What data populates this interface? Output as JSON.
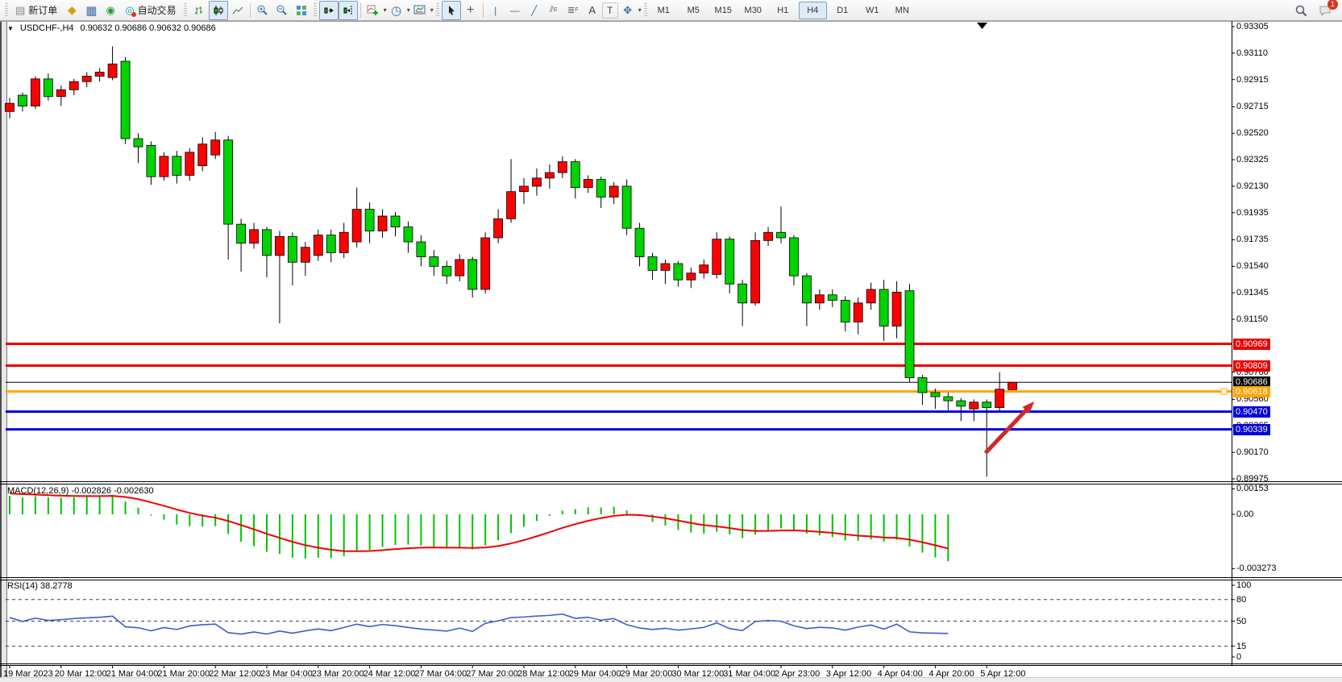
{
  "toolbar": {
    "new_order": "新订单",
    "autotrading": "自动交易",
    "timeframes": [
      "M1",
      "M5",
      "M15",
      "M30",
      "H1",
      "H4",
      "D1",
      "W1",
      "MN"
    ],
    "active_timeframe": "H4",
    "chat_badge": "1"
  },
  "chart": {
    "collapse_arrow": "▼",
    "title": "USDCHF-,H4",
    "ohlc_text": "0.90632 0.90686 0.90632 0.90686"
  },
  "macd_panel": {
    "label": "MACD(12,26,9) -0.002826 -0.002630",
    "axis_ticks": [
      "0.00153",
      "0.00",
      "-0.003273"
    ]
  },
  "rsi_panel": {
    "label": "RSI(14) 38.2778",
    "axis_ticks": [
      "100",
      "80",
      "50",
      "15",
      "0"
    ]
  },
  "chart_data": {
    "type": "candlestick",
    "symbol": "USDCHF-",
    "timeframe": "H4",
    "current": {
      "open": 0.90632,
      "high": 0.90686,
      "low": 0.90632,
      "close": 0.90686
    },
    "bull_color": "#FF0000",
    "bear_color": "#00D300",
    "price_axis_ticks": [
      0.93305,
      0.9311,
      0.92915,
      0.92715,
      0.9252,
      0.92325,
      0.9213,
      0.91935,
      0.91735,
      0.9154,
      0.91345,
      0.9115,
      0.9076,
      0.9056,
      0.90365,
      0.9017,
      0.89975
    ],
    "time_labels": [
      "19 Mar 2023",
      "20 Mar 12:00",
      "21 Mar 04:00",
      "21 Mar 20:00",
      "22 Mar 12:00",
      "23 Mar 04:00",
      "23 Mar 20:00",
      "24 Mar 12:00",
      "27 Mar 04:00",
      "27 Mar 20:00",
      "28 Mar 12:00",
      "29 Mar 04:00",
      "29 Mar 20:00",
      "30 Mar 12:00",
      "31 Mar 04:00",
      "2 Apr 23:00",
      "3 Apr 12:00",
      "4 Apr 04:00",
      "4 Apr 20:00",
      "5 Apr 12:00"
    ],
    "candles": [
      [
        0.9268,
        0.9278,
        0.9263,
        0.9274
      ],
      [
        0.928,
        0.9282,
        0.9268,
        0.9272
      ],
      [
        0.9272,
        0.9294,
        0.927,
        0.9292
      ],
      [
        0.9292,
        0.9296,
        0.9276,
        0.9279
      ],
      [
        0.9279,
        0.9287,
        0.9272,
        0.9284
      ],
      [
        0.9284,
        0.9292,
        0.928,
        0.929
      ],
      [
        0.929,
        0.9297,
        0.9286,
        0.9294
      ],
      [
        0.9294,
        0.93,
        0.929,
        0.9297
      ],
      [
        0.9293,
        0.9316,
        0.9291,
        0.9303
      ],
      [
        0.9305,
        0.9308,
        0.9244,
        0.9248
      ],
      [
        0.9248,
        0.9252,
        0.923,
        0.9242
      ],
      [
        0.9243,
        0.9246,
        0.9214,
        0.922
      ],
      [
        0.922,
        0.9238,
        0.9217,
        0.9235
      ],
      [
        0.9235,
        0.9239,
        0.9215,
        0.9221
      ],
      [
        0.9221,
        0.9241,
        0.9217,
        0.9238
      ],
      [
        0.9228,
        0.9249,
        0.9224,
        0.9244
      ],
      [
        0.9236,
        0.9253,
        0.9233,
        0.9247
      ],
      [
        0.9247,
        0.925,
        0.9159,
        0.9185
      ],
      [
        0.9185,
        0.9189,
        0.915,
        0.9171
      ],
      [
        0.9171,
        0.9186,
        0.9167,
        0.9181
      ],
      [
        0.9181,
        0.9183,
        0.9146,
        0.9162
      ],
      [
        0.9162,
        0.918,
        0.9112,
        0.9176
      ],
      [
        0.9176,
        0.9179,
        0.914,
        0.9157
      ],
      [
        0.9157,
        0.9172,
        0.9147,
        0.9168
      ],
      [
        0.9162,
        0.9181,
        0.9158,
        0.9177
      ],
      [
        0.9177,
        0.9181,
        0.9157,
        0.9164
      ],
      [
        0.9164,
        0.9186,
        0.916,
        0.9179
      ],
      [
        0.9172,
        0.9212,
        0.9168,
        0.9196
      ],
      [
        0.9196,
        0.9201,
        0.9171,
        0.918
      ],
      [
        0.918,
        0.9196,
        0.9175,
        0.9191
      ],
      [
        0.9191,
        0.9194,
        0.9176,
        0.9183
      ],
      [
        0.9183,
        0.9187,
        0.9164,
        0.9172
      ],
      [
        0.9172,
        0.9177,
        0.9154,
        0.9161
      ],
      [
        0.9161,
        0.9166,
        0.9147,
        0.9154
      ],
      [
        0.9154,
        0.9158,
        0.9141,
        0.9147
      ],
      [
        0.9147,
        0.9163,
        0.9143,
        0.9159
      ],
      [
        0.9159,
        0.9161,
        0.9131,
        0.9137
      ],
      [
        0.9137,
        0.9179,
        0.9134,
        0.9175
      ],
      [
        0.9175,
        0.9196,
        0.9171,
        0.9189
      ],
      [
        0.9189,
        0.9233,
        0.9186,
        0.9209
      ],
      [
        0.9209,
        0.9219,
        0.92,
        0.9213
      ],
      [
        0.9213,
        0.9226,
        0.9206,
        0.9219
      ],
      [
        0.9219,
        0.9229,
        0.9211,
        0.9223
      ],
      [
        0.9223,
        0.9235,
        0.9219,
        0.9231
      ],
      [
        0.9231,
        0.9233,
        0.9204,
        0.9212
      ],
      [
        0.9212,
        0.9221,
        0.9208,
        0.9218
      ],
      [
        0.9218,
        0.922,
        0.9197,
        0.9205
      ],
      [
        0.9205,
        0.9216,
        0.92,
        0.9213
      ],
      [
        0.9213,
        0.9218,
        0.9177,
        0.9182
      ],
      [
        0.9182,
        0.9186,
        0.9154,
        0.9161
      ],
      [
        0.9161,
        0.9164,
        0.9144,
        0.9151
      ],
      [
        0.9151,
        0.9159,
        0.9141,
        0.9156
      ],
      [
        0.9156,
        0.9158,
        0.9139,
        0.9144
      ],
      [
        0.9144,
        0.9153,
        0.9138,
        0.9149
      ],
      [
        0.9149,
        0.9159,
        0.9145,
        0.9155
      ],
      [
        0.9148,
        0.9179,
        0.9145,
        0.9174
      ],
      [
        0.9174,
        0.9176,
        0.9134,
        0.9141
      ],
      [
        0.9141,
        0.9144,
        0.911,
        0.9127
      ],
      [
        0.9127,
        0.9179,
        0.9125,
        0.9173
      ],
      [
        0.9173,
        0.9183,
        0.9169,
        0.9179
      ],
      [
        0.9179,
        0.9198,
        0.9171,
        0.9175
      ],
      [
        0.9175,
        0.9177,
        0.914,
        0.9147
      ],
      [
        0.9147,
        0.9149,
        0.911,
        0.9127
      ],
      [
        0.9127,
        0.9137,
        0.9122,
        0.9133
      ],
      [
        0.9133,
        0.9137,
        0.9124,
        0.9129
      ],
      [
        0.9129,
        0.9132,
        0.9106,
        0.9113
      ],
      [
        0.9113,
        0.9131,
        0.9104,
        0.9127
      ],
      [
        0.9127,
        0.9142,
        0.9122,
        0.9137
      ],
      [
        0.9137,
        0.9144,
        0.9099,
        0.911
      ],
      [
        0.911,
        0.9143,
        0.9101,
        0.9135
      ],
      [
        0.9136,
        0.9141,
        0.9069,
        0.9072
      ],
      [
        0.9072,
        0.9074,
        0.9052,
        0.9061
      ],
      [
        0.9061,
        0.9064,
        0.9049,
        0.9058
      ],
      [
        0.9058,
        0.9061,
        0.9048,
        0.9055
      ],
      [
        0.9055,
        0.9057,
        0.904,
        0.9051
      ],
      [
        0.9049,
        0.9056,
        0.904,
        0.9054
      ],
      [
        0.9054,
        0.9056,
        0.8999,
        0.905
      ],
      [
        0.905,
        0.9076,
        0.9047,
        0.90635
      ],
      [
        0.90632,
        0.90686,
        0.90632,
        0.90686
      ]
    ],
    "hlines": [
      {
        "price": 0.90969,
        "color": "#E80000",
        "width": 3,
        "label": "0.90969"
      },
      {
        "price": 0.90809,
        "color": "#E80000",
        "width": 3,
        "label": "0.90809"
      },
      {
        "price": 0.90686,
        "color": "#000000",
        "width": 1,
        "label": "0.90686"
      },
      {
        "price": 0.90618,
        "color": "#FFA500",
        "width": 3,
        "label": "0.90618",
        "selected": true
      },
      {
        "price": 0.9047,
        "color": "#0000DD",
        "width": 3,
        "label": "0.90470"
      },
      {
        "price": 0.90339,
        "color": "#0000DD",
        "width": 3,
        "label": "0.90339"
      }
    ],
    "arrow": {
      "color": "#CC2A2A",
      "from_bar": 75.9,
      "from_price": 0.90165,
      "to_bar": 79.7,
      "to_price": 0.90545
    },
    "macd": {
      "params": [
        12,
        26,
        9
      ],
      "value": -0.002826,
      "signal_value": -0.00263,
      "hist_color": "#00C300",
      "signal_color": "#F40000",
      "axis_values": [
        0.00153,
        0.0,
        -0.003273
      ],
      "last_bar": 73
    },
    "rsi": {
      "period": 14,
      "value": 38.2778,
      "color": "#3A5FCD",
      "levels": [
        80,
        50,
        15
      ],
      "range": [
        0,
        100
      ],
      "last_bar": 73
    }
  }
}
